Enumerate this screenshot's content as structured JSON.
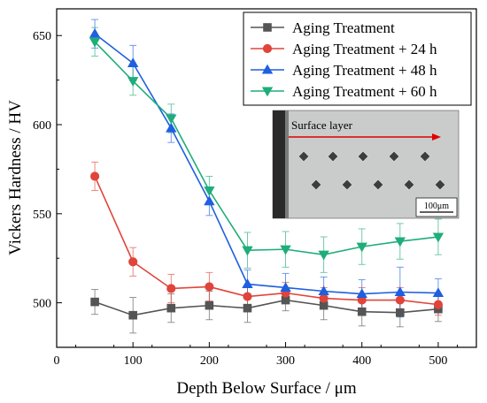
{
  "chart_data": {
    "type": "line",
    "title": "",
    "xlabel": "Depth Below Surface / μm",
    "ylabel": "Vickers Hardness / HV",
    "xlim": [
      0,
      550
    ],
    "ylim": [
      475,
      665
    ],
    "xticks": [
      0,
      100,
      200,
      300,
      400,
      500
    ],
    "yticks": [
      500,
      550,
      600,
      650
    ],
    "grid": false,
    "legend_position": "top-right",
    "x": [
      50,
      100,
      150,
      200,
      250,
      300,
      350,
      400,
      450,
      500
    ],
    "series": [
      {
        "name": "Aging Treatment",
        "color": "#555555",
        "marker": "square",
        "values": [
          500.5,
          493,
          497,
          498.5,
          497,
          501.5,
          498.5,
          495,
          494.5,
          496.5
        ],
        "errors": [
          7,
          10,
          8,
          8,
          8,
          6,
          8,
          8,
          8,
          7
        ]
      },
      {
        "name": "Aging Treatment + 24 h",
        "color": "#e0443a",
        "marker": "circle",
        "values": [
          571,
          523,
          508,
          509,
          503.5,
          505.5,
          502.5,
          501.5,
          501.5,
          499
        ],
        "errors": [
          8,
          8,
          8,
          8,
          6,
          6,
          6,
          7,
          7,
          6
        ]
      },
      {
        "name": "Aging Treatment + 48 h",
        "color": "#1f5fe0",
        "marker": "triangle-up",
        "values": [
          651,
          634.5,
          598,
          557,
          510.5,
          508.5,
          506.5,
          505,
          506,
          505.5
        ],
        "errors": [
          8,
          10,
          8,
          8,
          8,
          8,
          8,
          8,
          14,
          8
        ]
      },
      {
        "name": "Aging Treatment + 60 h",
        "color": "#1fad7a",
        "marker": "triangle-down",
        "values": [
          646.5,
          624.5,
          603.5,
          563,
          529.5,
          530,
          527,
          531.5,
          534.5,
          537
        ],
        "errors": [
          8,
          8,
          8,
          8,
          10,
          10,
          10,
          10,
          10,
          10
        ]
      }
    ],
    "inset": {
      "label": "Surface layer",
      "scale_bar": "100μm"
    }
  }
}
